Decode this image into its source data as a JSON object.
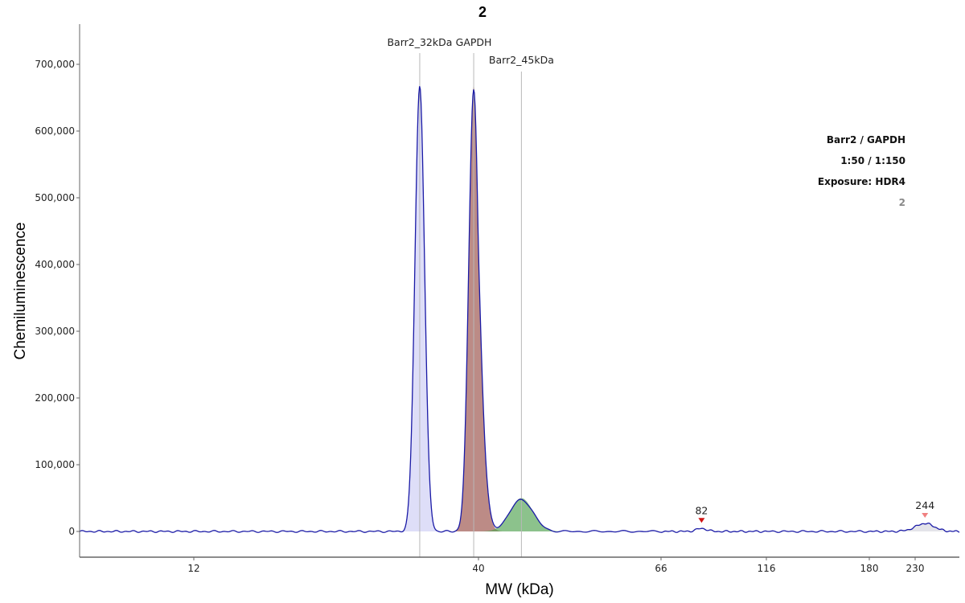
{
  "chart_data": {
    "type": "line",
    "title": "2",
    "xlabel": "MW (kDa)",
    "ylabel": "Chemiluminescence",
    "ylim": [
      -38000,
      760000
    ],
    "yticks": [
      0,
      100000,
      200000,
      300000,
      400000,
      500000,
      600000,
      700000
    ],
    "ytick_labels": [
      "0",
      "100,000",
      "200,000",
      "300,000",
      "400,000",
      "500,000",
      "600,000",
      "700,000"
    ],
    "xticks": [
      12,
      40,
      66,
      116,
      180,
      230
    ],
    "xtick_labels": [
      "12",
      "40",
      "66",
      "116",
      "180",
      "230"
    ],
    "grid": false,
    "trace": {
      "color": "#1a1aa6",
      "baseline_noise": 1500,
      "peaks": [
        {
          "mw": 31.2,
          "height": 668000,
          "width": 0.58
        },
        {
          "mw": 39.2,
          "height": 663000,
          "width": 0.6
        },
        {
          "mw": 45.0,
          "height": 48000,
          "width": 0.9
        },
        {
          "mw": 82,
          "height": 4500,
          "width": 0.8
        },
        {
          "mw": 244,
          "height": 12000,
          "width": 1.6
        }
      ]
    },
    "fitted_peaks": [
      {
        "name": "Barr2_32kDa",
        "mw": 31.2,
        "height": 672000,
        "width": 0.58,
        "fill": "#c8c8f4",
        "fill_opacity": 0.6
      },
      {
        "name": "GAPDH",
        "mw": 39.2,
        "height": 668000,
        "width": 0.6,
        "fill": "#a05a52",
        "fill_opacity": 0.7
      },
      {
        "name": "Barr2_45kDa",
        "mw": 45.0,
        "height": 50000,
        "width": 0.9,
        "fill": "#4ea24e",
        "fill_opacity": 0.65
      }
    ],
    "markers": [
      {
        "label": "82",
        "mw": 82,
        "color": "#d11414"
      },
      {
        "label": "244",
        "mw": 244,
        "color": "#f08080"
      }
    ],
    "info_box": {
      "lines": [
        "Barr2 / GAPDH",
        "1:50 / 1:150",
        "Exposure: HDR4",
        "2"
      ]
    }
  }
}
